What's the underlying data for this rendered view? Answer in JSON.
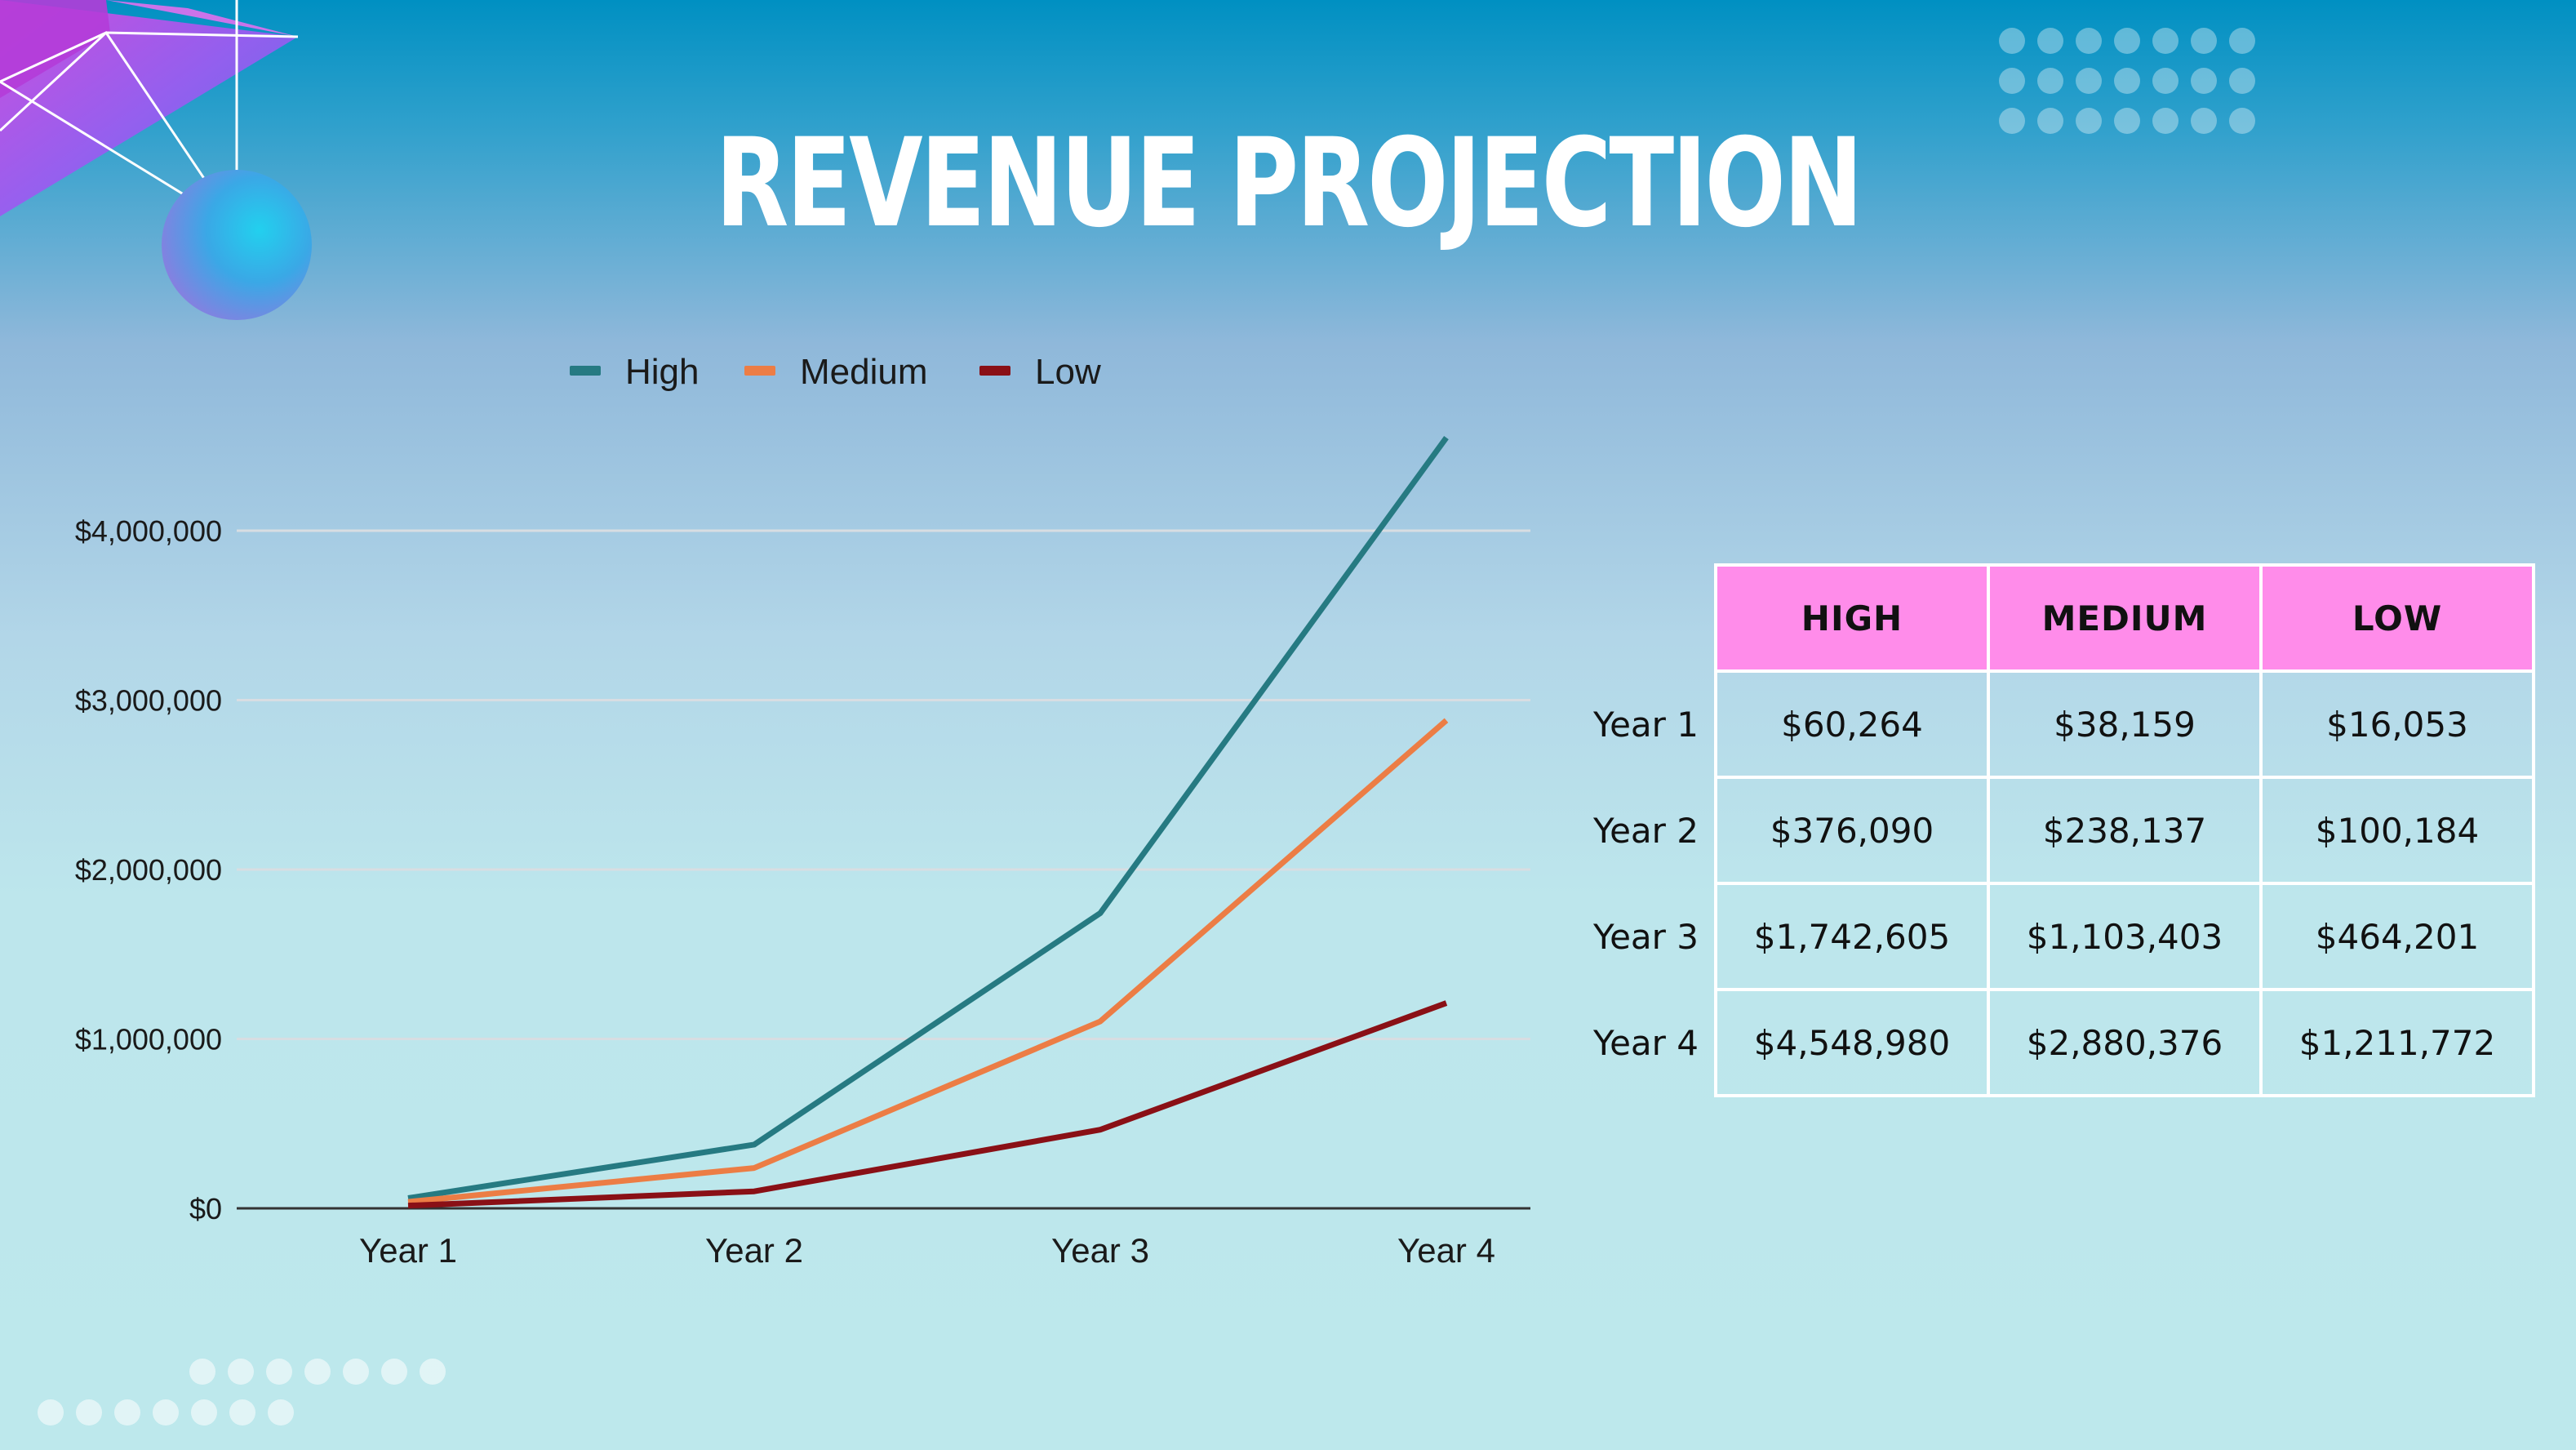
{
  "title": "REVENUE PROJECTION",
  "chart_data": {
    "type": "line",
    "categories": [
      "Year 1",
      "Year 2",
      "Year 3",
      "Year 4"
    ],
    "series": [
      {
        "name": "High",
        "color": "#267a82",
        "values": [
          60264,
          376090,
          1742605,
          4548980
        ]
      },
      {
        "name": "Medium",
        "color": "#ec7d45",
        "values": [
          38159,
          238137,
          1103403,
          2880376
        ]
      },
      {
        "name": "Low",
        "color": "#8a1016",
        "values": [
          16053,
          100184,
          464201,
          1211772
        ]
      }
    ],
    "ylim": [
      0,
      4000000
    ],
    "yticks": [
      {
        "value": 0,
        "label": "$0"
      },
      {
        "value": 1000000,
        "label": "$1,000,000"
      },
      {
        "value": 2000000,
        "label": "$2,000,000"
      },
      {
        "value": 3000000,
        "label": "$3,000,000"
      },
      {
        "value": 4000000,
        "label": "$4,000,000"
      }
    ],
    "legend_position": "top",
    "grid": true
  },
  "table": {
    "columns": [
      "HIGH",
      "MEDIUM",
      "LOW"
    ],
    "rows": [
      {
        "label": "Year 1",
        "values": [
          "$60,264",
          "$38,159",
          "$16,053"
        ]
      },
      {
        "label": "Year 2",
        "values": [
          "$376,090",
          "$238,137",
          "$100,184"
        ]
      },
      {
        "label": "Year 3",
        "values": [
          "$1,742,605",
          "$1,103,403",
          "$464,201"
        ]
      },
      {
        "label": "Year 4",
        "values": [
          "$4,548,980",
          "$2,880,376",
          "$1,211,772"
        ]
      }
    ],
    "header_color": "#ff8cea"
  }
}
